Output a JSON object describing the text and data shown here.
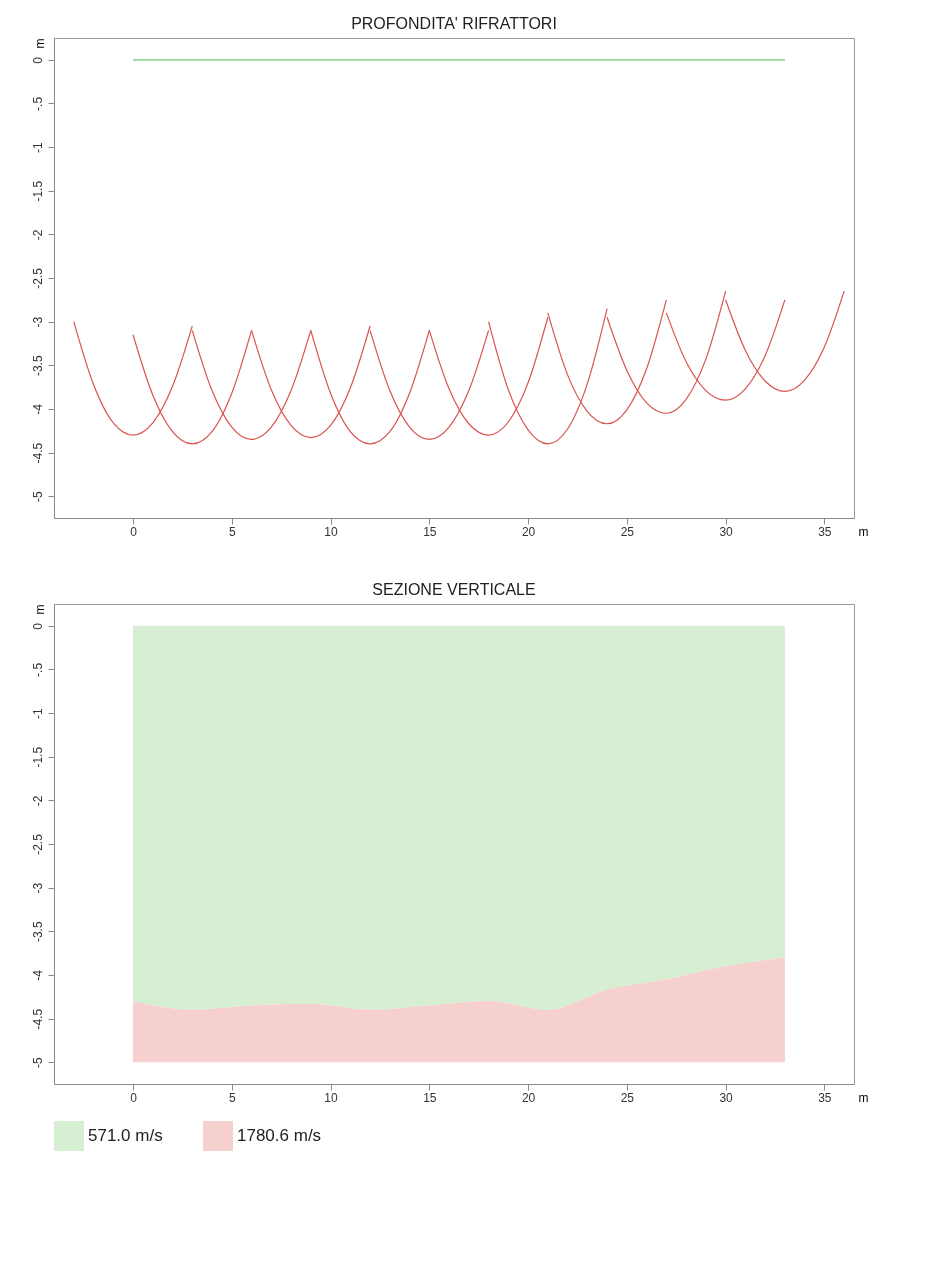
{
  "chart_data": [
    {
      "type": "line",
      "title": "PROFONDITA' RIFRATTORI",
      "xlabel": "m",
      "ylabel": "m",
      "xlim": [
        -4,
        36.5
      ],
      "ylim": [
        -5.25,
        0.25
      ],
      "xticks": [
        0,
        5,
        10,
        15,
        20,
        25,
        30,
        35
      ],
      "yticks": [
        0,
        {
          "value": -0.5,
          "label": "-.5"
        },
        -1,
        {
          "value": -1.5,
          "label": "-1.5"
        },
        -2,
        {
          "value": -2.5,
          "label": "-2.5"
        },
        -3,
        {
          "value": -3.5,
          "label": "-3.5"
        },
        -4,
        {
          "value": -4.5,
          "label": "-4.5"
        },
        -5
      ],
      "grid": false,
      "line_style": "solid",
      "series": [
        {
          "color": "#6cc46c",
          "x": [
            0,
            33
          ],
          "values": [
            0,
            0
          ]
        },
        {
          "color": "#d9534f",
          "x": [
            -3,
            -2,
            -1,
            0,
            1,
            2,
            3
          ],
          "values": [
            -3.0,
            -3.72,
            -4.16,
            -4.3,
            -4.16,
            -3.74,
            -3.05
          ]
        },
        {
          "color": "#d9534f",
          "x": [
            0,
            1,
            2,
            3,
            4,
            5,
            6
          ],
          "values": [
            -3.15,
            -3.84,
            -4.26,
            -4.4,
            -4.26,
            -3.82,
            -3.1
          ]
        },
        {
          "color": "#d9534f",
          "x": [
            3,
            4,
            5,
            6,
            7,
            8,
            9
          ],
          "values": [
            -3.1,
            -3.79,
            -4.21,
            -4.35,
            -4.21,
            -3.79,
            -3.1
          ]
        },
        {
          "color": "#d9534f",
          "x": [
            6,
            7,
            8,
            9,
            10,
            11,
            12
          ],
          "values": [
            -3.1,
            -3.78,
            -4.19,
            -4.33,
            -4.19,
            -3.76,
            -3.05
          ]
        },
        {
          "color": "#d9534f",
          "x": [
            9,
            10,
            11,
            12,
            13,
            14,
            15
          ],
          "values": [
            -3.1,
            -3.82,
            -4.26,
            -4.4,
            -4.26,
            -3.82,
            -3.1
          ]
        },
        {
          "color": "#d9534f",
          "x": [
            12,
            13,
            14,
            15,
            16,
            17,
            18
          ],
          "values": [
            -3.1,
            -3.79,
            -4.21,
            -4.35,
            -4.21,
            -3.79,
            -3.1
          ]
        },
        {
          "color": "#d9534f",
          "x": [
            15,
            16,
            17,
            18,
            19,
            20,
            21
          ],
          "values": [
            -3.1,
            -3.77,
            -4.17,
            -4.3,
            -4.15,
            -3.7,
            -2.95
          ]
        },
        {
          "color": "#d9534f",
          "x": [
            18,
            19,
            20,
            21,
            22,
            23,
            24
          ],
          "values": [
            -3.0,
            -3.78,
            -4.24,
            -4.4,
            -4.23,
            -3.71,
            -2.85
          ]
        },
        {
          "color": "#d9534f",
          "x": [
            21,
            22,
            23,
            24,
            25,
            26,
            27
          ],
          "values": [
            -2.9,
            -3.61,
            -4.03,
            -4.17,
            -4.01,
            -3.54,
            -2.75
          ]
        },
        {
          "color": "#d9534f",
          "x": [
            24,
            25,
            26,
            27,
            28,
            29,
            30
          ],
          "values": [
            -2.95,
            -3.56,
            -3.93,
            -4.05,
            -3.89,
            -3.43,
            -2.65
          ]
        },
        {
          "color": "#d9534f",
          "x": [
            27,
            28,
            29,
            30,
            31,
            32,
            33
          ],
          "values": [
            -2.9,
            -3.46,
            -3.79,
            -3.9,
            -3.77,
            -3.39,
            -2.75
          ]
        },
        {
          "color": "#d9534f",
          "x": [
            30,
            31,
            32,
            33,
            34,
            35,
            36
          ],
          "values": [
            -2.75,
            -3.33,
            -3.68,
            -3.8,
            -3.67,
            -3.29,
            -2.65
          ]
        }
      ]
    },
    {
      "type": "area",
      "title": "SEZIONE VERTICALE",
      "xlabel": "m",
      "ylabel": "m",
      "xlim": [
        -4,
        36.5
      ],
      "ylim": [
        -5.25,
        0.25
      ],
      "xticks": [
        0,
        5,
        10,
        15,
        20,
        25,
        30,
        35
      ],
      "yticks": [
        0,
        {
          "value": -0.5,
          "label": "-.5"
        },
        -1,
        {
          "value": -1.5,
          "label": "-1.5"
        },
        -2,
        {
          "value": -2.5,
          "label": "-2.5"
        },
        -3,
        {
          "value": -3.5,
          "label": "-3.5"
        },
        -4,
        {
          "value": -4.5,
          "label": "-4.5"
        },
        -5
      ],
      "grid": false,
      "stacked": true,
      "legend": "bottom left",
      "x": [
        0,
        3,
        6,
        9,
        12,
        15,
        18,
        21,
        24,
        27,
        30,
        33
      ],
      "series": [
        {
          "name": "571.0 m/s",
          "color": "#d6eed2",
          "values": [
            -4.3,
            -4.4,
            -4.35,
            -4.33,
            -4.4,
            -4.35,
            -4.3,
            -4.4,
            -4.17,
            -4.05,
            -3.9,
            -3.8
          ]
        },
        {
          "name": "1780.6 m/s",
          "color": "#f6cfcf",
          "values": [
            -0.7,
            -0.6,
            -0.65,
            -0.67,
            -0.6,
            -0.65,
            -0.7,
            -0.6,
            -0.83,
            -0.95,
            -1.1,
            -1.2
          ]
        }
      ]
    }
  ]
}
